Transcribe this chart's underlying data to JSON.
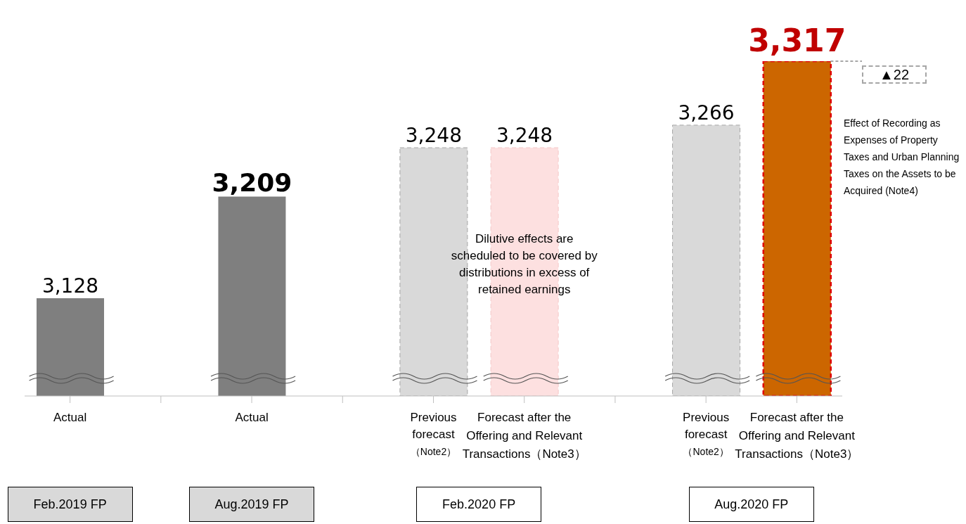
{
  "chart_data": {
    "type": "bar",
    "categories": [
      "Actual",
      null,
      "Actual",
      null,
      "Previous\nforecast\n$_{（Note2）}$",
      "Forecast after the\nOffering and Relevant\nTransactions（Note3）",
      null,
      "Previous\nforecast\n$_{（Note2）}$",
      "Forecast after the\nOffering and Relevant\nTransactions（Note3）"
    ],
    "values": [
      3128,
      null,
      3209,
      null,
      3248,
      3248,
      null,
      3266,
      3317
    ],
    "colors": [
      "#7f7f7f",
      "#ffffff",
      "#7f7f7f",
      "#ffffff",
      "#d9d9d9",
      "#fde0e0",
      "#ffffff",
      "#d9d9d9",
      "#cc6600"
    ],
    "ylim": [
      3050,
      3317
    ],
    "value_labels": [
      "3,128",
      null,
      "3,209",
      null,
      "3,248",
      "3,248",
      null,
      "3,266",
      "3,317"
    ],
    "grid": false,
    "legend": false,
    "annotations": [
      "Dilutive effects are scheduled to be covered by distributions in excess of retained earnings",
      "Effect of Recording as Expenses of Property Taxes and Urban Planning Taxes on the Assets to be Acquired (Note4)",
      "▲22",
      "Feb.2019 FP",
      "Aug.2019 FP",
      "Feb.2020 FP",
      "Aug.2020 FP"
    ]
  }
}
